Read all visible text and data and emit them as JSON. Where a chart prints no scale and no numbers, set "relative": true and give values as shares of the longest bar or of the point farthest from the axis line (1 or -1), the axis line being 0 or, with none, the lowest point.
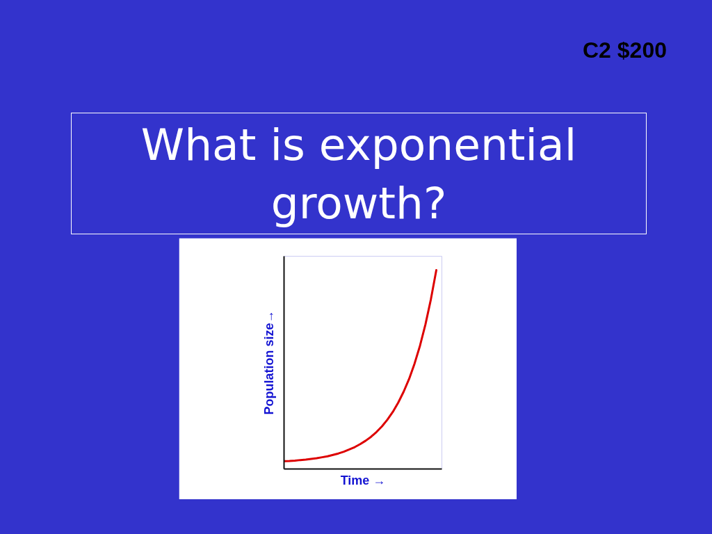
{
  "chart_data": {
    "type": "line",
    "title": "What is exponential growth?",
    "annotations": [
      "C2 $200"
    ],
    "xlabel": "Time →",
    "ylabel": "Population size→",
    "relative": true,
    "categories": [
      null,
      null,
      null,
      null,
      null,
      null,
      null,
      null,
      null,
      null,
      null,
      null,
      null,
      null,
      null,
      null,
      null,
      null,
      null,
      null,
      null,
      null,
      null,
      null,
      null,
      null,
      null,
      null,
      null
    ],
    "series": [
      {
        "color": "#dd0000",
        "values": [
          0.039,
          0.04,
          0.042,
          0.045,
          0.047,
          0.051,
          0.054,
          0.059,
          0.064,
          0.071,
          0.078,
          0.087,
          0.098,
          0.11,
          0.125,
          0.142,
          0.162,
          0.186,
          0.214,
          0.248,
          0.287,
          0.334,
          0.389,
          0.453,
          0.53,
          0.62,
          0.727,
          0.853,
          1
        ]
      }
    ]
  }
}
